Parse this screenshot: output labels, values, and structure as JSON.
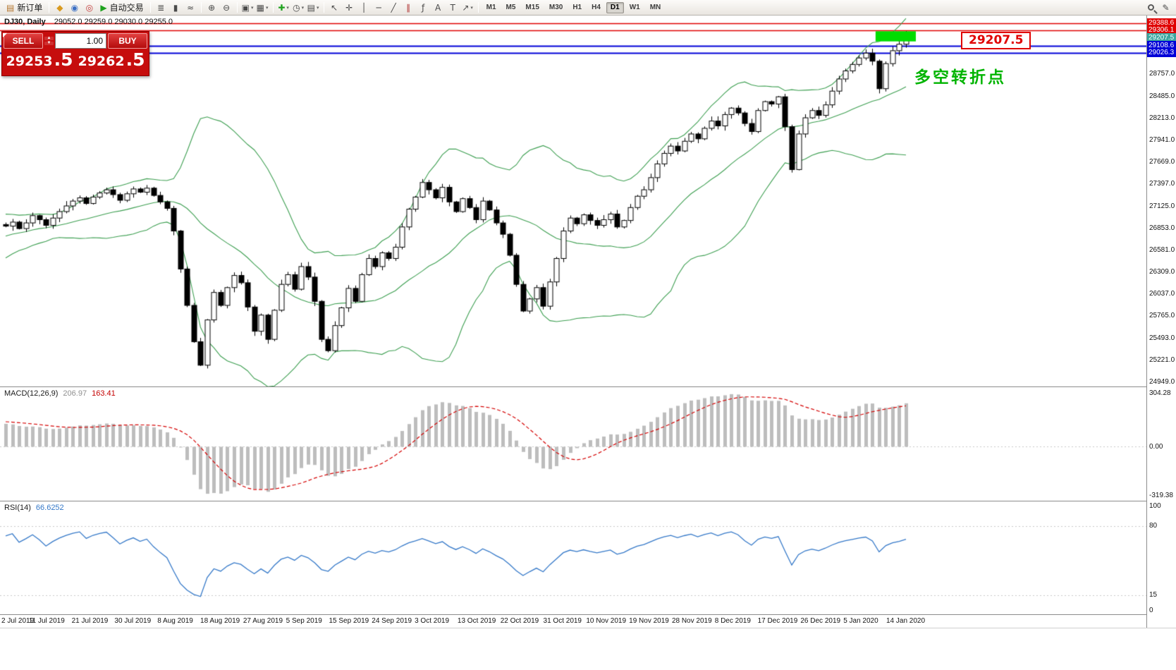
{
  "colors": {
    "band_green": "#3c9e50",
    "red_line": "#e00000",
    "blue_line": "#0000d8",
    "teal_badge": "#3aa6a0",
    "macd_hist": "#bdbdbd",
    "macd_signal": "#d40000",
    "rsi_line": "#3478c8",
    "highlight_green": "#00dd00"
  },
  "toolbar": {
    "groups": [
      [
        {
          "name": "new-order-button",
          "glyph": "▤",
          "glyph_color": "#b5762f",
          "label": "新订单"
        }
      ],
      [
        {
          "name": "metaquotes-icon",
          "glyph": "◆",
          "glyph_color": "#d99a1f"
        },
        {
          "name": "profile-icon",
          "glyph": "◉",
          "glyph_color": "#3b6fc4"
        },
        {
          "name": "community-icon",
          "glyph": "◎",
          "glyph_color": "#c43b3b"
        },
        {
          "name": "auto-trading-button",
          "glyph": "▶",
          "glyph_color": "#1ea21e",
          "label": "自动交易"
        }
      ],
      [
        {
          "name": "bars-chart-type-icon",
          "glyph": "≣"
        },
        {
          "name": "candles-chart-type-icon",
          "glyph": "▮"
        },
        {
          "name": "line-chart-type-icon",
          "glyph": "≈"
        }
      ],
      [
        {
          "name": "zoom-in-icon",
          "glyph": "⊕"
        },
        {
          "name": "zoom-out-icon",
          "glyph": "⊖"
        }
      ],
      [
        {
          "name": "tile-windows-icon",
          "glyph": "▣",
          "dropdown": true
        },
        {
          "name": "new-chart-icon",
          "glyph": "▦",
          "dropdown": true
        }
      ],
      [
        {
          "name": "indicators-icon",
          "glyph": "✚",
          "glyph_color": "#1ea21e",
          "dropdown": true
        },
        {
          "name": "periods-icon",
          "glyph": "◷",
          "dropdown": true
        },
        {
          "name": "templates-icon",
          "glyph": "▤",
          "dropdown": true
        }
      ],
      [
        {
          "name": "cursor-icon",
          "glyph": "↖"
        },
        {
          "name": "crosshair-icon",
          "glyph": "✛"
        },
        {
          "name": "vertical-line-icon",
          "glyph": "│"
        },
        {
          "name": "horizontal-line-icon",
          "glyph": "─"
        },
        {
          "name": "trendline-icon",
          "glyph": "╱"
        },
        {
          "name": "channel-icon",
          "glyph": "∥",
          "glyph_color": "#b03030"
        },
        {
          "name": "fibonacci-icon",
          "glyph": "ƒ"
        },
        {
          "name": "text-icon",
          "glyph": "A"
        },
        {
          "name": "text-label-icon",
          "glyph": "T"
        },
        {
          "name": "arrows-tool-icon",
          "glyph": "↗",
          "dropdown": true
        }
      ]
    ],
    "timeframes": {
      "items": [
        "M1",
        "M5",
        "M15",
        "M30",
        "H1",
        "H4",
        "D1",
        "W1",
        "MN"
      ],
      "active": "D1"
    },
    "right_icons": [
      {
        "name": "search-icon",
        "css": "search"
      },
      {
        "name": "edit-icon",
        "glyph": "✎"
      }
    ]
  },
  "chart": {
    "symbol_period": "DJ30, Daily",
    "ohlc": "29052.0 29259.0 29030.0 29255.0"
  },
  "trade_panel": {
    "collapse_glyph": "◤",
    "sell_label": "SELL",
    "buy_label": "BUY",
    "volume": "1.00",
    "stepper_up": "▲",
    "stepper_down": "▼",
    "sell_price": {
      "big": "29253",
      "pip": ".5"
    },
    "buy_price": {
      "big": "29262",
      "pip": ".5"
    }
  },
  "annotations": {
    "price_label": "29207.5",
    "turning_point": "多空转折点"
  },
  "main_chart": {
    "level_lines": [
      {
        "price": 29388.6,
        "color": "#e00000",
        "width": 1.5,
        "badge": "29388.6",
        "badge_bg": "#e00000"
      },
      {
        "price": 29306.1,
        "color": "#e00000",
        "width": 1.5,
        "badge": "29306.1",
        "badge_bg": "#e00000"
      },
      {
        "price": 29207.5,
        "color": null,
        "width": 0,
        "badge": "29207.5",
        "badge_bg": "#3aa6a0"
      },
      {
        "price": 29108.6,
        "color": "#0000d8",
        "width": 2,
        "badge": "29108.6",
        "badge_bg": "#0000d8"
      },
      {
        "price": 29026.3,
        "color": "#0000d8",
        "width": 2,
        "badge": "29026.3",
        "badge_bg": "#0000d8"
      }
    ],
    "scale_labels": [
      "28757.0",
      "28485.0",
      "28213.0",
      "27941.0",
      "27669.0",
      "27397.0",
      "27125.0",
      "26853.0",
      "26581.0",
      "26309.0",
      "26037.0",
      "25765.0",
      "25493.0",
      "25221.0",
      "24949.0"
    ],
    "highlight_box": {
      "from_index": 130,
      "to_index": 135,
      "price_top": 29290,
      "price_bottom": 29165
    }
  },
  "macd_panel": {
    "name": "MACD(12,26,9)",
    "value_main": "206.97",
    "value_signal": "163.41",
    "scale_top": "304.28",
    "scale_zero": "0.00",
    "scale_bottom": "-319.38",
    "params": {
      "fast": 12,
      "slow": 26,
      "signal": 9
    }
  },
  "rsi_panel": {
    "name": "RSI(14)",
    "value": "66.6252",
    "scale": [
      "100",
      "80",
      "15",
      "0"
    ],
    "levels": [
      80,
      15
    ],
    "period": 14
  },
  "chart_data": {
    "type": "candlestick",
    "symbol": "DJ30",
    "timeframe": "Daily",
    "title": "DJ30, Daily 29052.0 29259.0 29030.0 29255.0",
    "ylim": [
      24897,
      29485
    ],
    "x_labels": [
      "2 Jul 2019",
      "11 Jul 2019",
      "21 Jul 2019",
      "30 Jul 2019",
      "8 Aug 2019",
      "18 Aug 2019",
      "27 Aug 2019",
      "5 Sep 2019",
      "15 Sep 2019",
      "24 Sep 2019",
      "3 Oct 2019",
      "13 Oct 2019",
      "22 Oct 2019",
      "31 Oct 2019",
      "10 Nov 2019",
      "19 Nov 2019",
      "28 Nov 2019",
      "8 Dec 2019",
      "17 Dec 2019",
      "26 Dec 2019",
      "5 Jan 2020",
      "14 Jan 2020"
    ],
    "bollinger": {
      "period": 20,
      "deviation": 2
    },
    "warmup_closes": [
      25960,
      26020,
      25980,
      26080,
      26150,
      26100,
      26180,
      26260,
      26220,
      26310,
      26380,
      26340,
      26430,
      26500,
      26460,
      26540,
      26610,
      26570,
      26650,
      26700,
      26660,
      26720,
      26780,
      26740,
      26800,
      26850,
      26810,
      26860,
      26900,
      26870,
      26910,
      26940,
      26900
    ],
    "closes": [
      26880,
      26930,
      26850,
      26920,
      27010,
      26960,
      26890,
      26980,
      27060,
      27130,
      27190,
      27230,
      27160,
      27240,
      27290,
      27330,
      27270,
      27200,
      27280,
      27340,
      27300,
      27350,
      27260,
      27180,
      27100,
      26820,
      26350,
      25900,
      25450,
      25160,
      25720,
      26060,
      25900,
      26120,
      26270,
      26180,
      25880,
      25580,
      25780,
      25480,
      25840,
      26160,
      26280,
      26100,
      26380,
      26250,
      25950,
      25480,
      25340,
      25650,
      25870,
      26110,
      25950,
      26280,
      26480,
      26380,
      26550,
      26480,
      26620,
      26870,
      27090,
      27240,
      27420,
      27330,
      27230,
      27360,
      27180,
      27060,
      27220,
      27110,
      26960,
      27190,
      27080,
      26920,
      26780,
      26520,
      26160,
      25830,
      25980,
      26120,
      25890,
      26190,
      26480,
      26820,
      26980,
      26910,
      27020,
      26950,
      26890,
      26960,
      27030,
      26870,
      26950,
      27110,
      27250,
      27330,
      27480,
      27650,
      27780,
      27870,
      27810,
      27930,
      28020,
      27960,
      28090,
      28180,
      28120,
      28260,
      28340,
      28280,
      28150,
      28050,
      28310,
      28420,
      28390,
      28480,
      28110,
      27580,
      28020,
      28220,
      28310,
      28250,
      28380,
      28550,
      28700,
      28800,
      28880,
      28960,
      29020,
      28920,
      28580,
      28890,
      29050,
      29130,
      29255
    ]
  }
}
